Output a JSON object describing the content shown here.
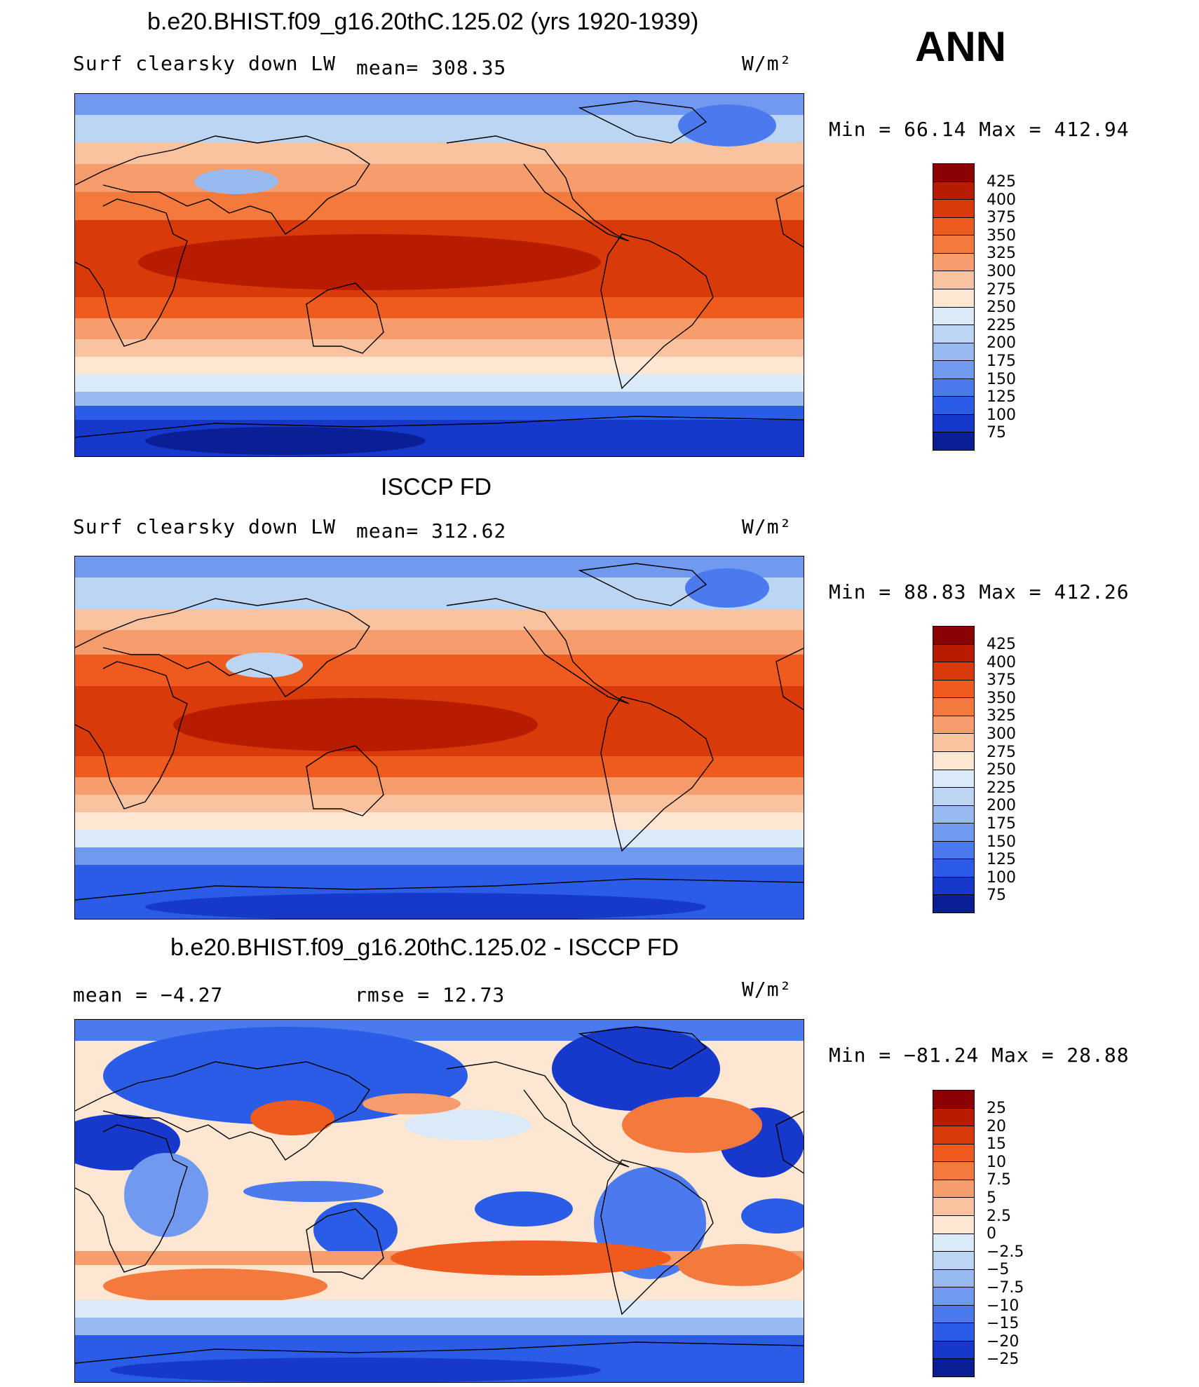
{
  "season": "ANN",
  "units": "W/m²",
  "panels": [
    {
      "title": "b.e20.BHIST.f09_g16.20thC.125.02 (yrs 1920-1939)",
      "variable": "Surf clearsky down LW",
      "stat": "mean=  308.35",
      "minmax": "Min  =    66.14  Max  =  412.94",
      "levels": [
        "425",
        "400",
        "375",
        "350",
        "325",
        "300",
        "275",
        "250",
        "225",
        "200",
        "175",
        "150",
        "125",
        "100",
        "75"
      ]
    },
    {
      "title": "ISCCP FD",
      "variable": "Surf clearsky down LW",
      "stat": "mean=  312.62",
      "minmax": "Min  =    88.83  Max  =  412.26",
      "levels": [
        "425",
        "400",
        "375",
        "350",
        "325",
        "300",
        "275",
        "250",
        "225",
        "200",
        "175",
        "150",
        "125",
        "100",
        "75"
      ]
    },
    {
      "title": "b.e20.BHIST.f09_g16.20thC.125.02 - ISCCP FD",
      "variable": "mean  =    −4.27",
      "stat": "rmse  =    12.73",
      "minmax": "Min  = −81.24  Max  =    28.88",
      "levels": [
        "25",
        "20",
        "15",
        "10",
        "7.5",
        "5",
        "2.5",
        "0",
        "−2.5",
        "−5",
        "−7.5",
        "−10",
        "−15",
        "−20",
        "−25"
      ]
    }
  ],
  "colors": {
    "abs_scale": [
      "#8b0000",
      "#b71c00",
      "#d93a0a",
      "#ef5a1e",
      "#f4793c",
      "#f79c6c",
      "#f9c3a0",
      "#fde6d2",
      "#dbeaf8",
      "#bcd5f3",
      "#97baf0",
      "#6f9af0",
      "#4a7aee",
      "#2b5ce6",
      "#1639cc",
      "#0a1f96"
    ],
    "diff_scale": [
      "#8b0000",
      "#b71c00",
      "#d93a0a",
      "#ef5a1e",
      "#f4793c",
      "#f79c6c",
      "#f9c3a0",
      "#fde6d2",
      "#dbeaf8",
      "#bcd5f3",
      "#97baf0",
      "#6f9af0",
      "#4a7aee",
      "#2b5ce6",
      "#1639cc",
      "#0a1f96"
    ]
  }
}
